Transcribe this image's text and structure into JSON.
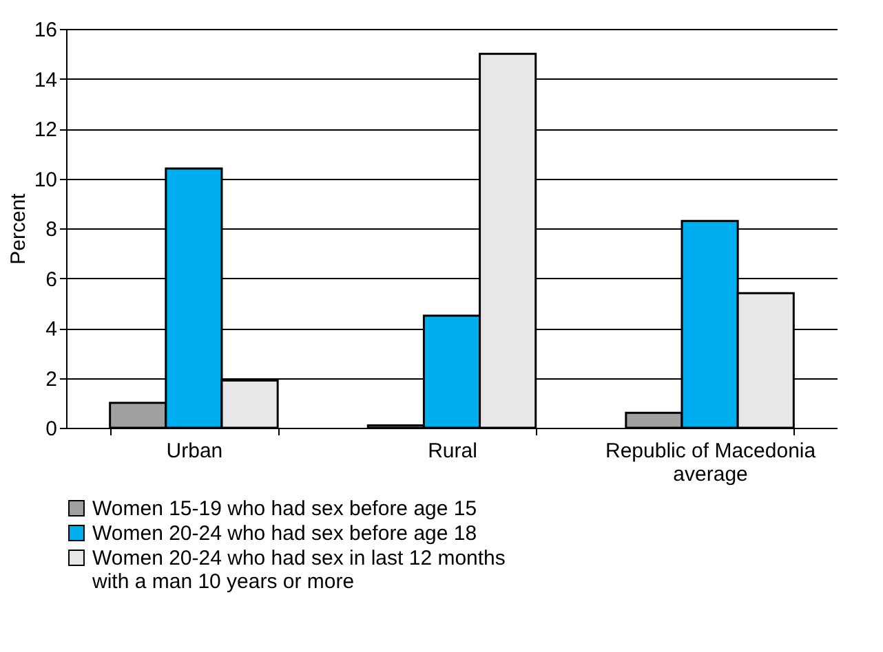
{
  "chart_data": {
    "type": "bar",
    "ylabel": "Percent",
    "categories": [
      "Urban",
      "Rural",
      "Republic of Macedonia\naverage"
    ],
    "series": [
      {
        "name": "Women 15-19 who had sex before age 15",
        "color": "#a0a0a0",
        "values": [
          1.0,
          0.1,
          0.6
        ]
      },
      {
        "name": "Women 20-24 who had sex before age 18",
        "color": "#00adef",
        "values": [
          10.4,
          4.5,
          8.3
        ]
      },
      {
        "name": "Women 20-24 who had sex in last 12 months\nwith a man 10 years or more",
        "color": "#e6e7e9",
        "values": [
          1.9,
          15.0,
          5.4
        ]
      }
    ],
    "ylim": [
      0,
      16
    ],
    "yticks": [
      0,
      2,
      4,
      6,
      8,
      10,
      12,
      14,
      16
    ],
    "grid": "y",
    "legend": "bottom"
  }
}
